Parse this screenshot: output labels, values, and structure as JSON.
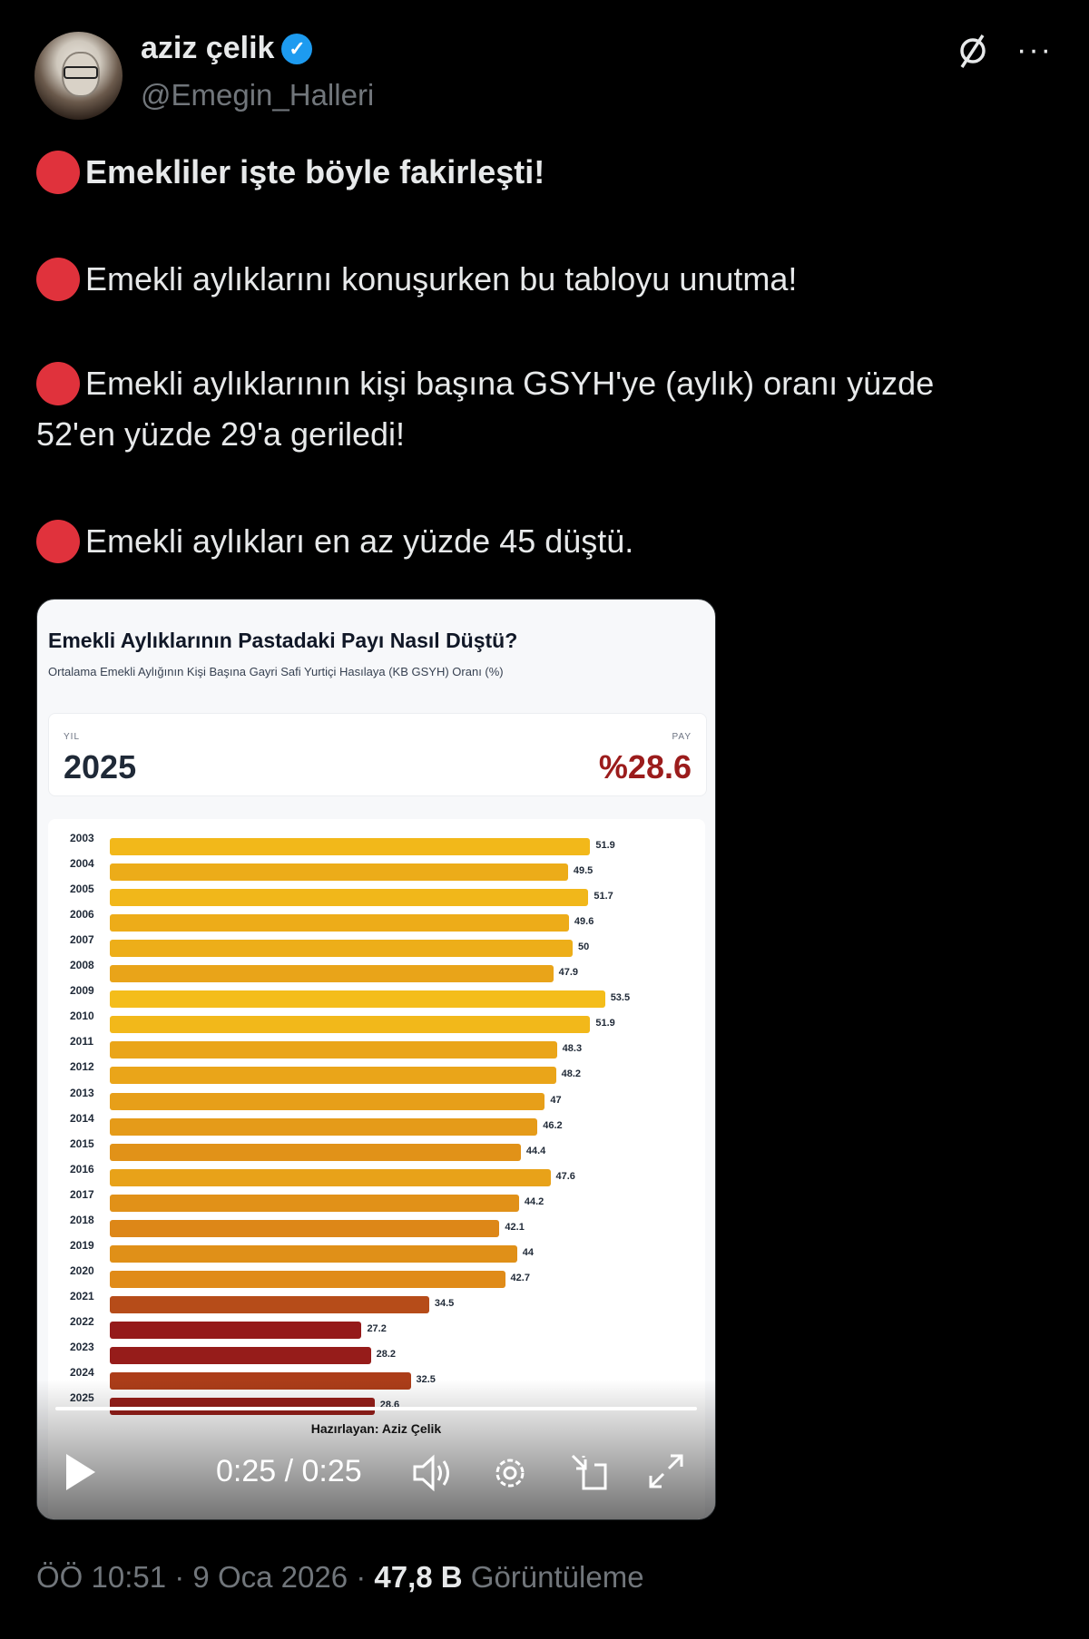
{
  "author": {
    "name": "aziz çelik",
    "handle": "@Emegin_Halleri",
    "verified": true
  },
  "header_icons": [
    "grok-icon",
    "more-icon"
  ],
  "tweet": {
    "lines": [
      "Emekliler işte böyle fakirleşti!",
      "Emekli aylıklarını konuşurken bu tabloyu unutma!",
      "Emekli aylıklarının kişi başına GSYH'ye (aylık) oranı yüzde",
      "52'en yüzde 29'a geriledi!",
      "Emekli aylıkları en az yüzde 45 düştü."
    ],
    "bullet_color": "#e0323c"
  },
  "media": {
    "highlight": {
      "year_label": "YIL",
      "year": "2025",
      "share_label": "PAY",
      "share": "%28.6"
    },
    "credit": "Hazırlayan: Aziz Çelik",
    "video": {
      "time": "0:25 / 0:25",
      "progress": 1.0
    }
  },
  "chart_data": {
    "type": "bar",
    "orientation": "horizontal",
    "title": "Emekli Aylıklarının Pastadaki Payı Nasıl Düştü?",
    "subtitle": "Ortalama Emekli Aylığının Kişi Başına Gayri Safi Yurtiçi Hasılaya (KB GSYH) Oranı (%)",
    "categories": [
      "2003",
      "2004",
      "2005",
      "2006",
      "2007",
      "2008",
      "2009",
      "2010",
      "2011",
      "2012",
      "2013",
      "2014",
      "2015",
      "2016",
      "2017",
      "2018",
      "2019",
      "2020",
      "2021",
      "2022",
      "2023",
      "2024",
      "2025"
    ],
    "values": [
      51.9,
      49.5,
      51.7,
      49.6,
      50,
      47.9,
      53.5,
      51.9,
      48.3,
      48.2,
      47,
      46.2,
      44.4,
      47.6,
      44.2,
      42.1,
      44,
      42.7,
      34.5,
      27.2,
      28.2,
      32.5,
      28.6
    ],
    "value_labels": [
      "51.9",
      "49.5",
      "51.7",
      "49.6",
      "50",
      "47.9",
      "53.5",
      "51.9",
      "48.3",
      "48.2",
      "47",
      "46.2",
      "44.4",
      "47.6",
      "44.2",
      "42.1",
      "44",
      "42.7",
      "34.5",
      "27.2",
      "28.2",
      "32.5",
      "28.6"
    ],
    "color_scale": {
      "high": "#f4bd1a",
      "mid": "#dc8618",
      "low": "#951a1a"
    },
    "grid": false
  },
  "footer": {
    "time": "ÖÖ 10:51",
    "date": "9 Oca 2026",
    "views": "47,8 B",
    "views_label": "Görüntüleme"
  }
}
